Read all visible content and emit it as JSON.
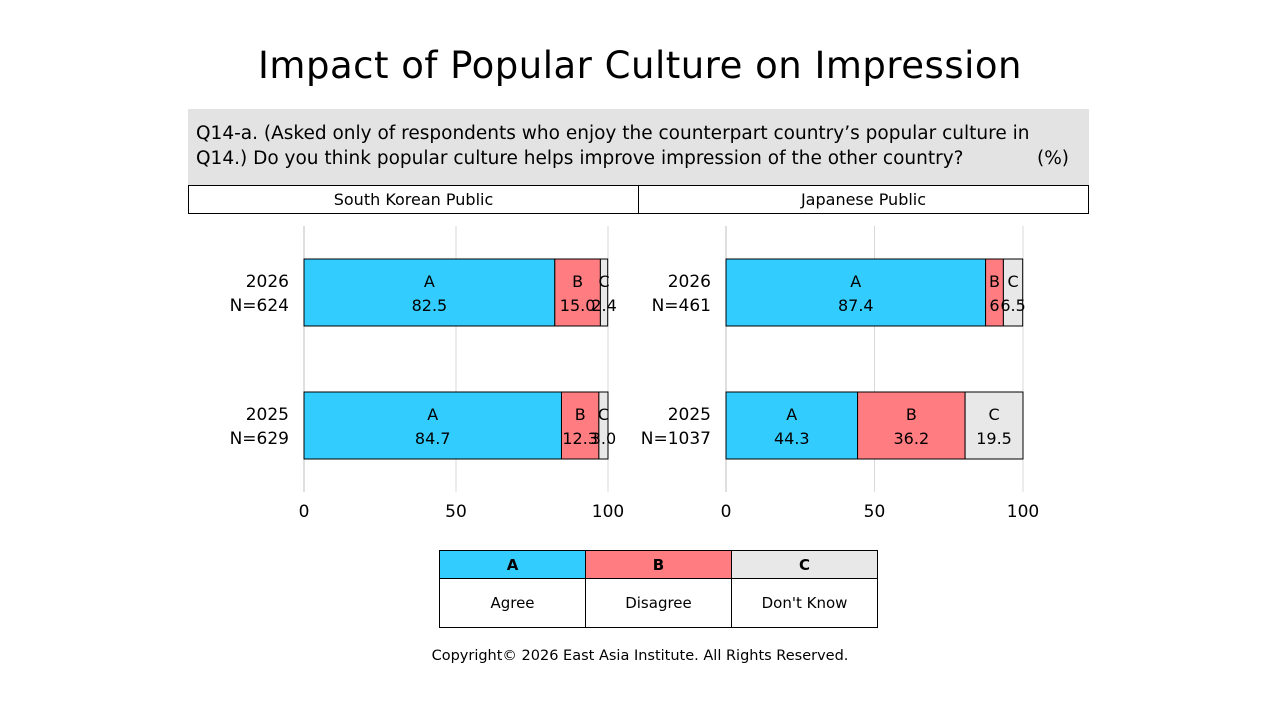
{
  "title": "Impact of Popular Culture on Impression",
  "question": {
    "line1": "Q14-a. (Asked only of respondents who enjoy the counterpart country’s popular culture in",
    "line2": "Q14.) Do you think popular culture helps improve impression of the other country?",
    "unit": "(%)"
  },
  "colors": {
    "A": "#33ccff",
    "B": "#ff7c80",
    "C": "#e8e8e8"
  },
  "chart_data": [
    {
      "type": "bar",
      "orientation": "horizontal",
      "stacked": true,
      "title": "South Korean Public",
      "categories": [
        {
          "line1": "2026",
          "line2": "N=624"
        },
        {
          "line1": "2025",
          "line2": "N=629"
        }
      ],
      "series": [
        {
          "name": "A",
          "values": [
            82.5,
            84.7
          ]
        },
        {
          "name": "B",
          "values": [
            15.0,
            12.3
          ]
        },
        {
          "name": "C",
          "values": [
            2.4,
            3.0
          ]
        }
      ],
      "value_labels": [
        [
          "82.5",
          "15.0",
          "2.4"
        ],
        [
          "84.7",
          "12.3",
          "3.0"
        ]
      ],
      "xlim": [
        0,
        100
      ],
      "xticks": [
        "0",
        "50",
        "100"
      ],
      "grid": true
    },
    {
      "type": "bar",
      "orientation": "horizontal",
      "stacked": true,
      "title": "Japanese Public",
      "categories": [
        {
          "line1": "2026",
          "line2": "N=461"
        },
        {
          "line1": "2025",
          "line2": "N=1037"
        }
      ],
      "series": [
        {
          "name": "A",
          "values": [
            87.4,
            44.3
          ]
        },
        {
          "name": "B",
          "values": [
            6.0,
            36.2
          ]
        },
        {
          "name": "C",
          "values": [
            6.5,
            19.5
          ]
        }
      ],
      "value_labels": [
        [
          "87.4",
          "6",
          "6.5"
        ],
        [
          "44.3",
          "36.2",
          "19.5"
        ]
      ],
      "xlim": [
        0,
        100
      ],
      "xticks": [
        "0",
        "50",
        "100"
      ],
      "grid": true
    }
  ],
  "legend": {
    "items": [
      {
        "code": "A",
        "label": "Agree"
      },
      {
        "code": "B",
        "label": "Disagree"
      },
      {
        "code": "C",
        "label": "Don't Know"
      }
    ]
  },
  "copyright": "Copyright© 2026 East Asia Institute. All Rights Reserved."
}
